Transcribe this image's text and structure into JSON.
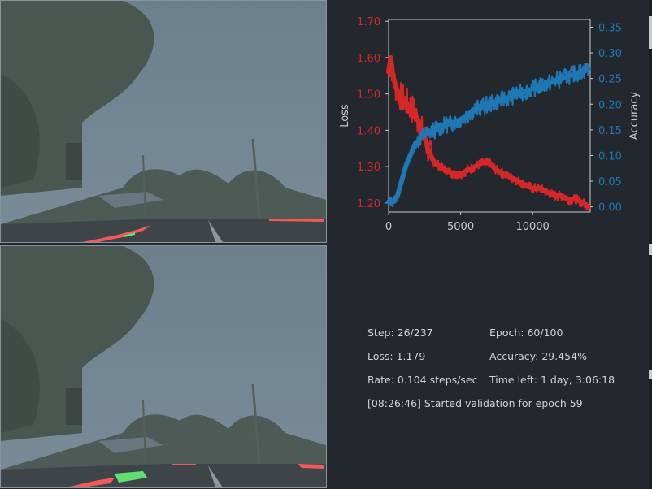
{
  "chart_data": {
    "type": "line",
    "x_range": [
      0,
      14000
    ],
    "x_ticks": [
      "0",
      "5000",
      "10000"
    ],
    "x_tick_values": [
      0,
      5000,
      10000
    ],
    "series": [
      {
        "name": "Loss",
        "axis": "left",
        "color": "#d62728",
        "ylabel": "Loss",
        "ylim": [
          1.175,
          1.705
        ],
        "ticks": [
          "1.20",
          "1.30",
          "1.40",
          "1.50",
          "1.60",
          "1.70"
        ],
        "tick_values": [
          1.2,
          1.3,
          1.4,
          1.5,
          1.6,
          1.7
        ],
        "x": [
          0,
          150,
          300,
          500,
          700,
          900,
          1100,
          1400,
          1800,
          2200,
          2500,
          2800,
          3200,
          3600,
          4000,
          4500,
          5000,
          5500,
          6000,
          6500,
          7000,
          7500,
          8000,
          8500,
          9000,
          9500,
          10000,
          10500,
          11000,
          11500,
          12000,
          12500,
          13000,
          13500,
          13900
        ],
        "y": [
          1.56,
          1.6,
          1.55,
          1.52,
          1.5,
          1.49,
          1.48,
          1.47,
          1.45,
          1.41,
          1.38,
          1.34,
          1.31,
          1.3,
          1.29,
          1.28,
          1.28,
          1.29,
          1.3,
          1.31,
          1.31,
          1.29,
          1.28,
          1.27,
          1.26,
          1.25,
          1.24,
          1.24,
          1.23,
          1.22,
          1.22,
          1.21,
          1.21,
          1.2,
          1.19
        ]
      },
      {
        "name": "Accuracy",
        "axis": "right",
        "color": "#1f77b4",
        "ylabel": "Accuracy",
        "ylim": [
          -0.01,
          0.365
        ],
        "ticks": [
          "0.00",
          "0.05",
          "0.10",
          "0.15",
          "0.20",
          "0.25",
          "0.30",
          "0.35"
        ],
        "tick_values": [
          0.0,
          0.05,
          0.1,
          0.15,
          0.2,
          0.25,
          0.3,
          0.35
        ],
        "x": [
          0,
          300,
          600,
          900,
          1200,
          1500,
          1800,
          2100,
          2400,
          2800,
          3200,
          3600,
          4000,
          4500,
          5000,
          5500,
          6000,
          6500,
          7000,
          7500,
          8000,
          8500,
          9000,
          9500,
          10000,
          10500,
          11000,
          11500,
          12000,
          12500,
          13000,
          13500,
          13900
        ],
        "y": [
          0.01,
          0.01,
          0.02,
          0.05,
          0.08,
          0.1,
          0.12,
          0.13,
          0.14,
          0.145,
          0.15,
          0.155,
          0.16,
          0.165,
          0.17,
          0.18,
          0.19,
          0.195,
          0.2,
          0.205,
          0.21,
          0.215,
          0.22,
          0.225,
          0.23,
          0.235,
          0.24,
          0.245,
          0.25,
          0.255,
          0.26,
          0.265,
          0.27
        ]
      }
    ]
  },
  "stats": {
    "step": "Step: 26/237",
    "epoch": "Epoch: 60/100",
    "loss": "Loss: 1.179",
    "accuracy": "Accuracy: 29.454%",
    "rate": "Rate: 0.104 steps/sec",
    "time_left": "Time left: 1 day, 3:06:18",
    "log": "[08:26:46] Started validation for epoch 59"
  },
  "colors": {
    "background": "#23272e",
    "loss": "#d62728",
    "accuracy": "#1f77b4",
    "prediction_red": "#f25a5a",
    "prediction_green": "#5fe070"
  }
}
